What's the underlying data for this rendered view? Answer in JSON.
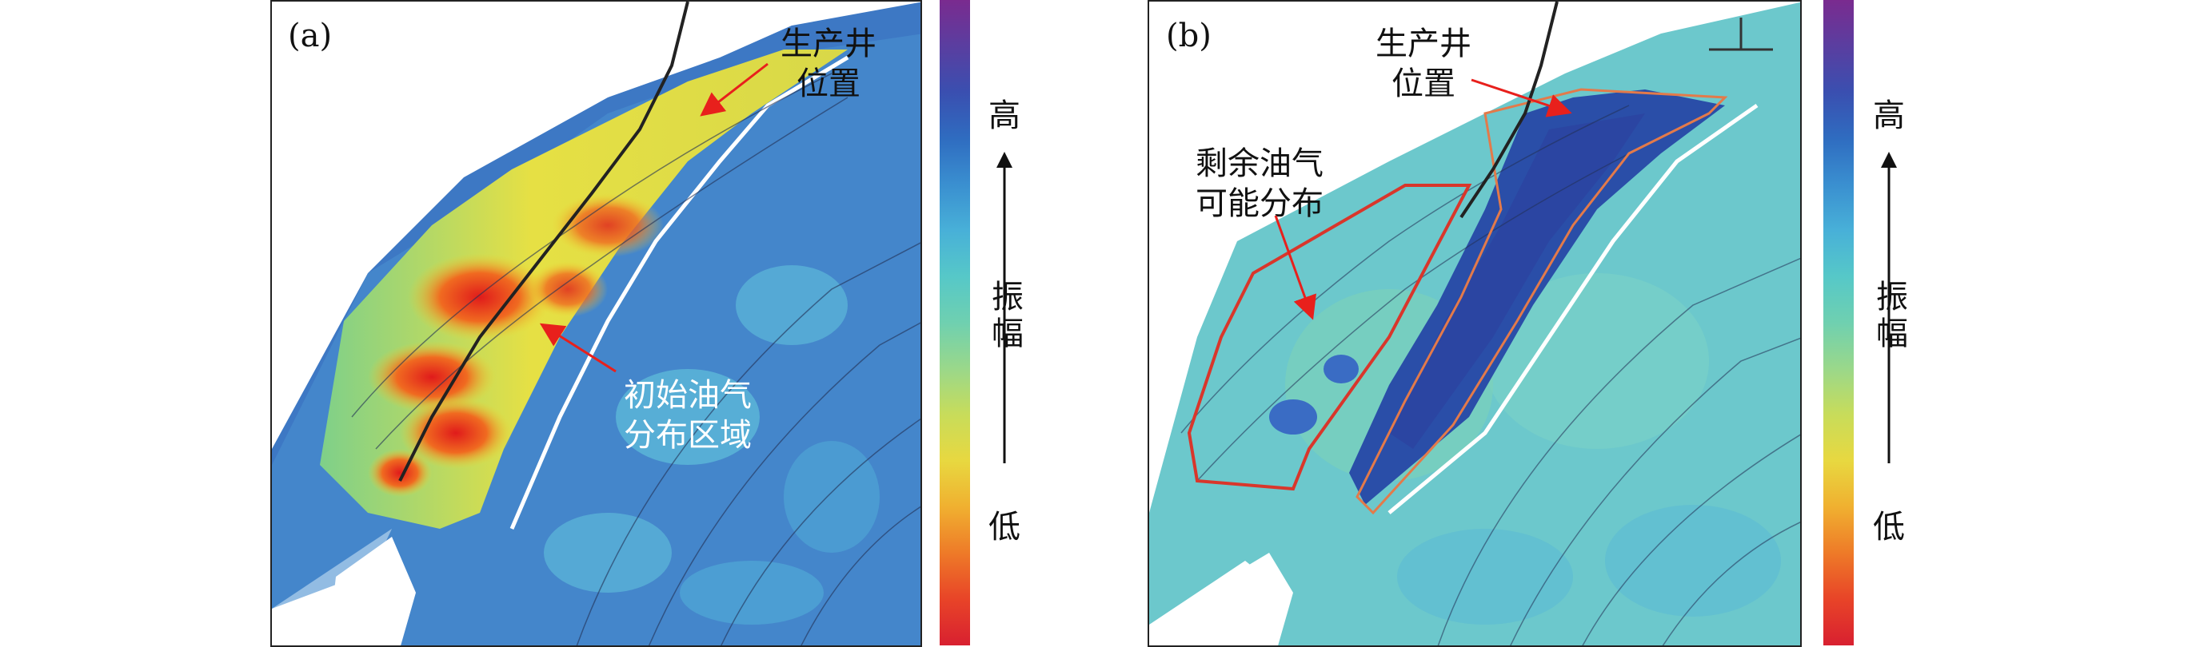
{
  "panel_a": {
    "letter": "(a)",
    "annotations": {
      "well_line1": "生产井",
      "well_line2": "位置",
      "initial_line1": "初始油气",
      "initial_line2": "分布区域"
    }
  },
  "panel_b": {
    "letter": "(b)",
    "annotations": {
      "well_line1": "生产井",
      "well_line2": "位置",
      "remaining_line1": "剩余油气",
      "remaining_line2": "可能分布"
    }
  },
  "colorbar": {
    "high_label": "高",
    "low_label": "低",
    "axis_label": "振幅",
    "colors": [
      "#7a2b8f",
      "#5a3ea0",
      "#3a4fb0",
      "#2f6cc0",
      "#3a8fd0",
      "#48b0d8",
      "#56c8c8",
      "#6fd0b0",
      "#9ad88a",
      "#c8dc5a",
      "#e8d840",
      "#f0b030",
      "#ee7a28",
      "#e84428",
      "#d82030"
    ]
  },
  "colors": {
    "arrow_red": "#e8201c",
    "outline_red": "#d9362b"
  }
}
